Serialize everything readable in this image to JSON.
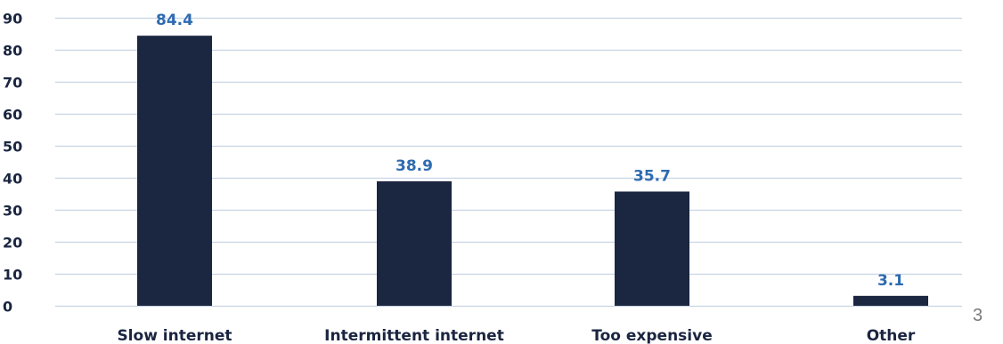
{
  "chart_data": {
    "type": "bar",
    "title": "",
    "xlabel": "",
    "ylabel": "",
    "categories": [
      "Slow internet",
      "Intermittent internet",
      "Too expensive",
      "Other"
    ],
    "values": [
      84.4,
      38.9,
      35.7,
      3.1
    ],
    "data_labels": [
      "84.4",
      "38.9",
      "35.7",
      "3.1"
    ],
    "ylim": [
      0,
      90
    ],
    "yticks": [
      0,
      10,
      20,
      30,
      40,
      50,
      60,
      70,
      80,
      90
    ],
    "grid": true,
    "legend": "none",
    "colors": {
      "bar": "#1b2641",
      "data_label": "#2e6bb0",
      "tick_label": "#1a2540",
      "grid": "#c9d3e3"
    }
  },
  "page": {
    "number": "3"
  }
}
